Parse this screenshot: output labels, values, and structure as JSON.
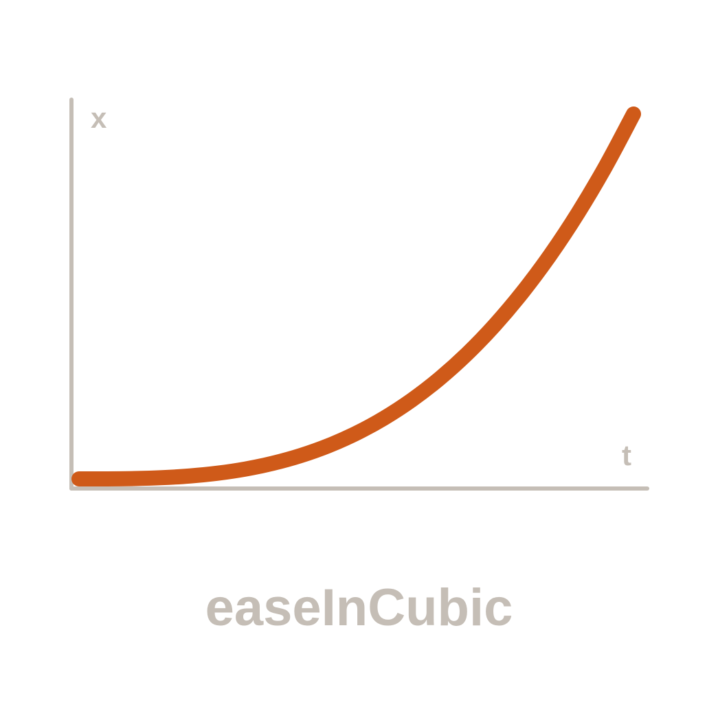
{
  "chart_data": {
    "type": "line",
    "title": "easeInCubic",
    "xlabel": "t",
    "ylabel": "x",
    "xlim": [
      0,
      1
    ],
    "ylim": [
      0,
      1
    ],
    "grid": false,
    "series": [
      {
        "x": [
          0.0,
          0.05,
          0.1,
          0.15,
          0.2,
          0.25,
          0.3,
          0.35,
          0.4,
          0.45,
          0.5,
          0.55,
          0.6,
          0.65,
          0.7,
          0.75,
          0.8,
          0.85,
          0.9,
          0.95,
          1.0
        ],
        "values": [
          0.0,
          0.0001,
          0.001,
          0.0034,
          0.008,
          0.0156,
          0.027,
          0.0429,
          0.064,
          0.0911,
          0.125,
          0.1664,
          0.216,
          0.2746,
          0.343,
          0.4219,
          0.512,
          0.6141,
          0.729,
          0.8574,
          1.0
        ]
      }
    ],
    "colors": {
      "curve": "#cf5a19",
      "axis": "#c5beb6"
    }
  }
}
